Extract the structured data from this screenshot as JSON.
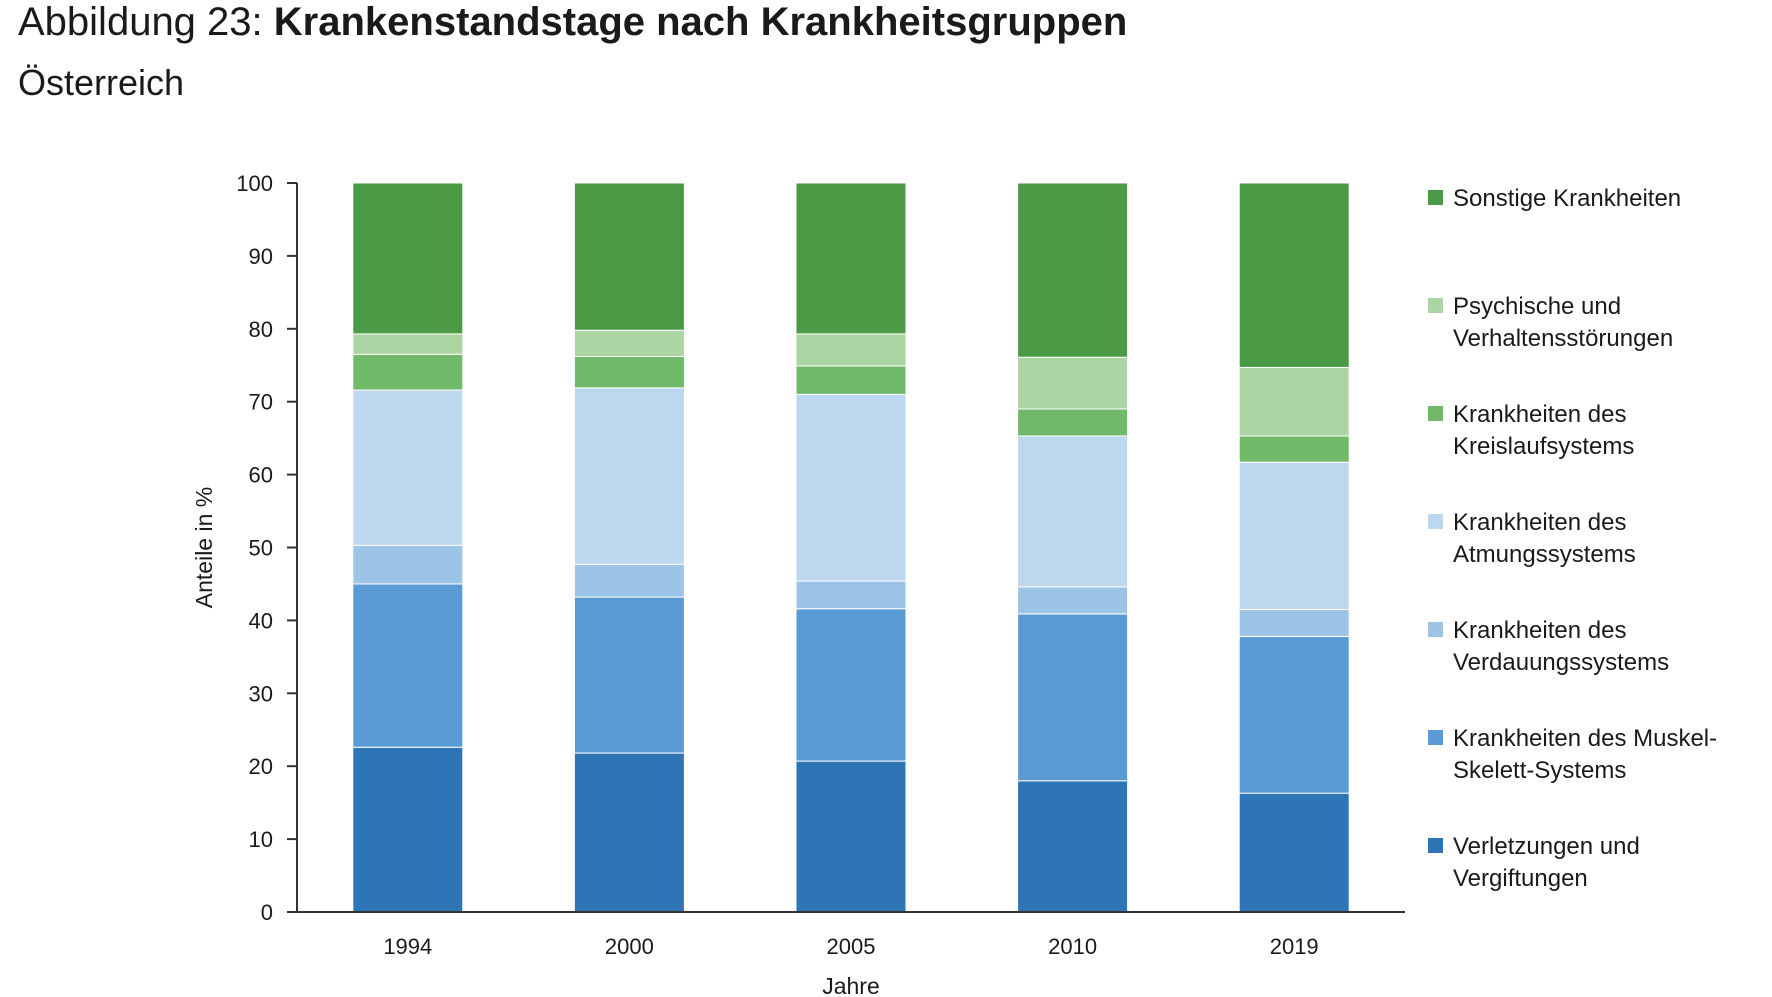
{
  "header": {
    "title_prefix": "Abbildung 23: ",
    "title_bold": "Krankenstandstage nach Krankheitsgruppen",
    "subtitle": "Österreich"
  },
  "chart_data": {
    "type": "bar",
    "stacked": true,
    "categories": [
      "1994",
      "2000",
      "2005",
      "2010",
      "2019"
    ],
    "xlabel": "Jahre",
    "ylabel": "Anteile in %",
    "ylim": [
      0,
      100
    ],
    "yticks": [
      0,
      10,
      20,
      30,
      40,
      50,
      60,
      70,
      80,
      90,
      100
    ],
    "grid": false,
    "legend_position": "right",
    "series": [
      {
        "name": "Verletzungen und Vergiftungen",
        "legend_lines": [
          "Verletzungen und",
          "Vergiftungen"
        ],
        "color": "#2e75b6",
        "values": [
          22.6,
          21.8,
          20.7,
          18.0,
          16.3
        ]
      },
      {
        "name": "Krankheiten des Muskel-Skelett-Systems",
        "legend_lines": [
          "Krankheiten des Muskel-",
          "Skelett-Systems"
        ],
        "color": "#5b9bd5",
        "values": [
          22.4,
          21.4,
          20.9,
          22.9,
          21.5
        ]
      },
      {
        "name": "Krankheiten des Verdauungssystems",
        "legend_lines": [
          "Krankheiten des",
          "Verdauungssystems"
        ],
        "color": "#9dc3e6",
        "values": [
          5.3,
          4.5,
          3.8,
          3.7,
          3.7
        ]
      },
      {
        "name": "Krankheiten des Atmungssystems",
        "legend_lines": [
          "Krankheiten des",
          "Atmungssystems"
        ],
        "color": "#bdd7ee",
        "values": [
          21.3,
          24.2,
          25.6,
          20.7,
          20.2
        ]
      },
      {
        "name": "Krankheiten des Kreislaufsystems",
        "legend_lines": [
          "Krankheiten des",
          "Kreislaufsystems"
        ],
        "color": "#70b968",
        "values": [
          4.9,
          4.3,
          3.9,
          3.7,
          3.6
        ]
      },
      {
        "name": "Psychische und Verhaltensstörungen",
        "legend_lines": [
          "Psychische und",
          "Verhaltensstörungen"
        ],
        "color": "#acd5a4",
        "values": [
          2.8,
          3.6,
          4.4,
          7.1,
          9.4
        ]
      },
      {
        "name": "Sonstige Krankheiten",
        "legend_lines": [
          "Sonstige Krankheiten"
        ],
        "color": "#4a9a46",
        "values": [
          20.7,
          20.2,
          20.7,
          23.9,
          25.3
        ]
      }
    ]
  }
}
